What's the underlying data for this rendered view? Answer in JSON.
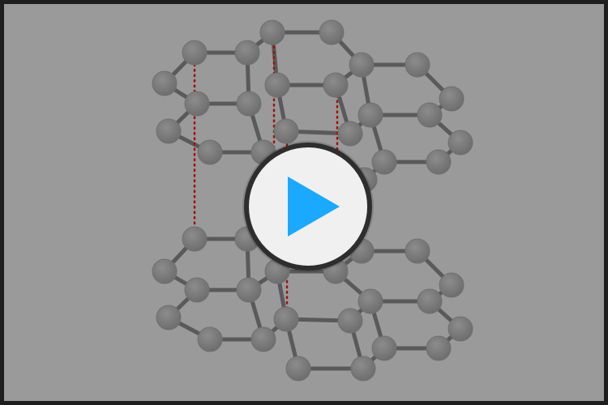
{
  "video": {
    "player": "video-player",
    "play_icon": "play-icon",
    "colors": {
      "background": "#9a9a9a",
      "border": "#1e1e1e",
      "atom": "#7a7a7a",
      "bond": "#5a5a5a",
      "dotted_line": "#a01010",
      "play_circle": "#f0f0f0",
      "play_ring": "#2e2e2e",
      "play_triangle": "#1aa9ff"
    }
  }
}
